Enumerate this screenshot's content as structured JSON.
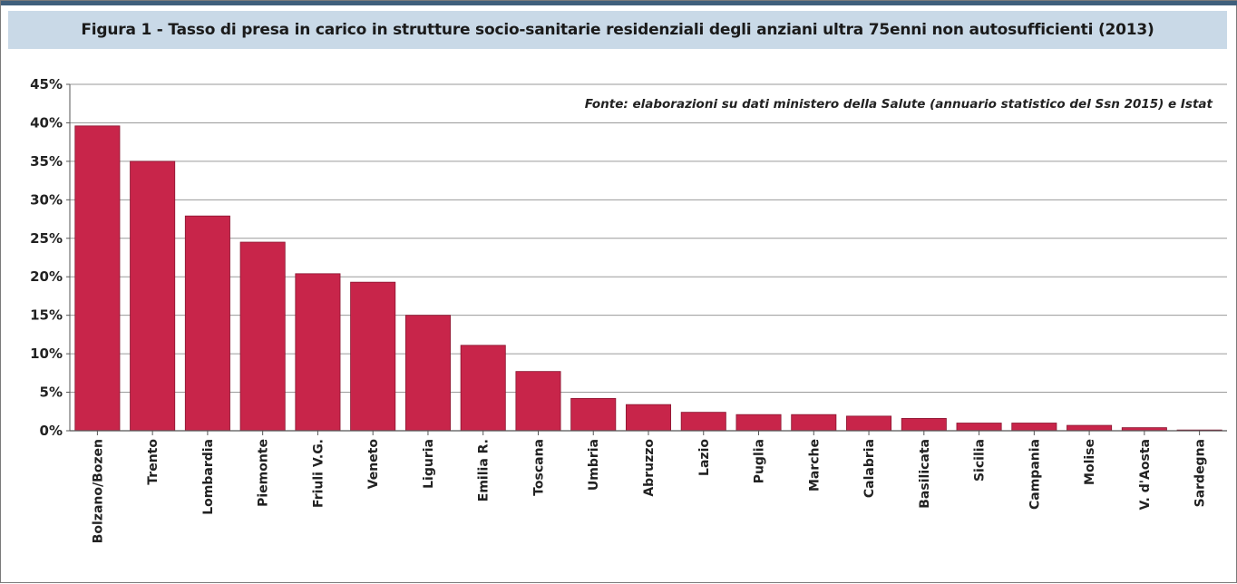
{
  "figure": {
    "title": "Figura 1 - Tasso di presa in carico in strutture socio-sanitarie residenziali degli anziani ultra 75enni non autosufficienti (2013)",
    "source": "Fonte: elaborazioni su dati ministero della Salute (annuario statistico del Ssn 2015) e Istat"
  },
  "colors": {
    "bar": "#c8254a",
    "bar_edge": "#8a1530",
    "header_bg": "#c9d9e7",
    "top_line": "#3f5f7c",
    "grid": "#9a9a9a"
  },
  "chart_data": {
    "type": "bar",
    "title": "Figura 1 - Tasso di presa in carico in strutture socio-sanitarie residenziali degli anziani ultra 75enni non autosufficienti (2013)",
    "xlabel": "",
    "ylabel": "",
    "ylim": [
      0,
      45
    ],
    "y_ticks": [
      0,
      5,
      10,
      15,
      20,
      25,
      30,
      35,
      40,
      45
    ],
    "y_tick_labels": [
      "0%",
      "5%",
      "10%",
      "15%",
      "20%",
      "25%",
      "30%",
      "35%",
      "40%",
      "45%"
    ],
    "grid": true,
    "legend": "none",
    "categories": [
      "Bolzano/Bozen",
      "Trento",
      "Lombardia",
      "Piemonte",
      "Friuli V.G.",
      "Veneto",
      "Liguria",
      "Emilia R.",
      "Toscana",
      "Umbria",
      "Abruzzo",
      "Lazio",
      "Puglia",
      "Marche",
      "Calabria",
      "Basilicata",
      "Sicilia",
      "Campania",
      "Molise",
      "V. d'Aosta",
      "Sardegna"
    ],
    "values": [
      39.6,
      35.0,
      27.9,
      24.5,
      20.4,
      19.3,
      15.0,
      11.1,
      7.7,
      4.2,
      3.4,
      2.4,
      2.1,
      2.1,
      1.9,
      1.6,
      1.0,
      1.0,
      0.7,
      0.4,
      0.1
    ]
  }
}
